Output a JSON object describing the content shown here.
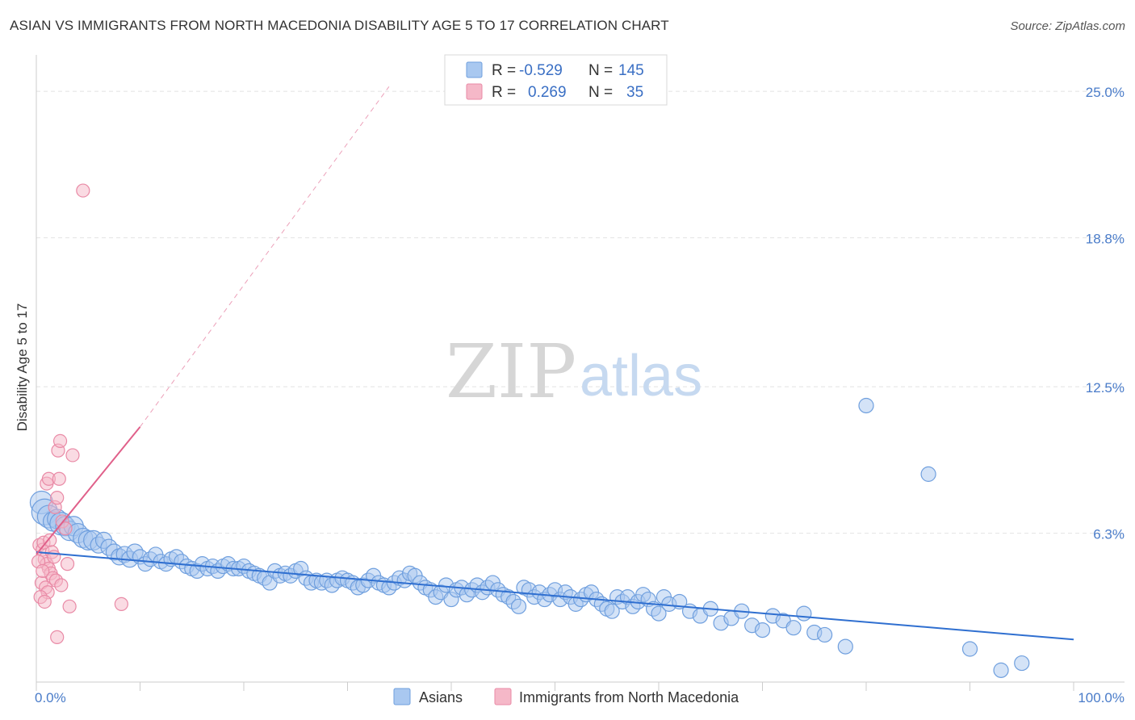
{
  "header": {
    "title": "ASIAN VS IMMIGRANTS FROM NORTH MACEDONIA DISABILITY AGE 5 TO 17 CORRELATION CHART",
    "source": "Source: ZipAtlas.com"
  },
  "watermark": {
    "zip": "ZIP",
    "atlas": "atlas"
  },
  "legend_top": {
    "rows": [
      {
        "r_label": "R =",
        "r_value": "-0.529",
        "n_label": "N =",
        "n_value": "145",
        "color": "#a9c8f0"
      },
      {
        "r_label": "R =",
        "r_value": "0.269",
        "n_label": "N =",
        "n_value": "35",
        "color": "#f5b8c8"
      }
    ]
  },
  "legend_bottom": {
    "items": [
      {
        "label": "Asians",
        "color": "#a9c8f0"
      },
      {
        "label": "Immigrants from North Macedonia",
        "color": "#f5b8c8"
      }
    ]
  },
  "colors": {
    "blue_fill": "#a9c8f0",
    "blue_stroke": "#6f9fde",
    "blue_line": "#2f6fd0",
    "pink_fill": "#f5b8c8",
    "pink_stroke": "#e98aa6",
    "pink_line": "#e0608a",
    "grid": "#e2e2e2",
    "axis_label": "#4a7cc9"
  },
  "chart_data": {
    "type": "scatter",
    "title": "ASIAN VS IMMIGRANTS FROM NORTH MACEDONIA DISABILITY AGE 5 TO 17 CORRELATION CHART",
    "xlabel": "",
    "ylabel": "Disability Age 5 to 17",
    "xlim": [
      0,
      100
    ],
    "ylim": [
      0,
      26.2
    ],
    "x_tick_labels": [
      "0.0%",
      "100.0%"
    ],
    "y_ticks": [
      6.3,
      12.5,
      18.8,
      25.0
    ],
    "y_tick_labels": [
      "6.3%",
      "12.5%",
      "18.8%",
      "25.0%"
    ],
    "grid": true,
    "legend_placement": "top-center",
    "series": [
      {
        "name": "Asians",
        "r": -0.529,
        "n": 145,
        "trend": {
          "x0": 0,
          "y0": 5.5,
          "x1": 100,
          "y1": 1.8
        },
        "points": [
          [
            0.5,
            7.6,
            14
          ],
          [
            0.8,
            7.2,
            16
          ],
          [
            1.2,
            7.0,
            14
          ],
          [
            1.6,
            6.8,
            12
          ],
          [
            2.0,
            6.9,
            12
          ],
          [
            2.4,
            6.7,
            14
          ],
          [
            2.8,
            6.6,
            12
          ],
          [
            3.2,
            6.4,
            12
          ],
          [
            3.6,
            6.6,
            12
          ],
          [
            4.0,
            6.3,
            12
          ],
          [
            4.5,
            6.1,
            12
          ],
          [
            5.0,
            6.0,
            12
          ],
          [
            5.5,
            6.0,
            12
          ],
          [
            6.0,
            5.8,
            10
          ],
          [
            6.5,
            6.0,
            10
          ],
          [
            7.0,
            5.7,
            10
          ],
          [
            7.5,
            5.5,
            10
          ],
          [
            8.0,
            5.3,
            10
          ],
          [
            8.5,
            5.4,
            10
          ],
          [
            9.0,
            5.2,
            10
          ],
          [
            9.5,
            5.5,
            10
          ],
          [
            10.0,
            5.3,
            9
          ],
          [
            10.5,
            5.0,
            9
          ],
          [
            11.0,
            5.2,
            9
          ],
          [
            11.5,
            5.4,
            9
          ],
          [
            12.0,
            5.1,
            9
          ],
          [
            12.5,
            5.0,
            9
          ],
          [
            13.0,
            5.2,
            9
          ],
          [
            13.5,
            5.3,
            9
          ],
          [
            14.0,
            5.1,
            9
          ],
          [
            14.5,
            4.9,
            9
          ],
          [
            15.0,
            4.8,
            9
          ],
          [
            15.5,
            4.7,
            9
          ],
          [
            16.0,
            5.0,
            9
          ],
          [
            16.5,
            4.8,
            9
          ],
          [
            17.0,
            4.9,
            9
          ],
          [
            17.5,
            4.7,
            9
          ],
          [
            18.0,
            4.9,
            9
          ],
          [
            18.5,
            5.0,
            9
          ],
          [
            19.0,
            4.8,
            9
          ],
          [
            19.5,
            4.8,
            9
          ],
          [
            20.0,
            4.9,
            9
          ],
          [
            20.5,
            4.7,
            9
          ],
          [
            21.0,
            4.6,
            9
          ],
          [
            21.5,
            4.5,
            9
          ],
          [
            22.0,
            4.4,
            9
          ],
          [
            22.5,
            4.2,
            9
          ],
          [
            23.0,
            4.7,
            9
          ],
          [
            23.5,
            4.5,
            9
          ],
          [
            24.0,
            4.6,
            9
          ],
          [
            24.5,
            4.5,
            9
          ],
          [
            25.0,
            4.7,
            9
          ],
          [
            25.5,
            4.8,
            9
          ],
          [
            26.0,
            4.4,
            9
          ],
          [
            26.5,
            4.2,
            9
          ],
          [
            27.0,
            4.3,
            9
          ],
          [
            27.5,
            4.2,
            9
          ],
          [
            28.0,
            4.3,
            9
          ],
          [
            28.5,
            4.1,
            9
          ],
          [
            29.0,
            4.3,
            9
          ],
          [
            29.5,
            4.4,
            9
          ],
          [
            30.0,
            4.3,
            9
          ],
          [
            30.5,
            4.2,
            9
          ],
          [
            31.0,
            4.0,
            9
          ],
          [
            31.5,
            4.1,
            9
          ],
          [
            32.0,
            4.3,
            9
          ],
          [
            32.5,
            4.5,
            9
          ],
          [
            33.0,
            4.2,
            9
          ],
          [
            33.5,
            4.1,
            9
          ],
          [
            34.0,
            4.0,
            9
          ],
          [
            34.5,
            4.2,
            9
          ],
          [
            35.0,
            4.4,
            9
          ],
          [
            35.5,
            4.3,
            9
          ],
          [
            36.0,
            4.6,
            9
          ],
          [
            36.5,
            4.5,
            9
          ],
          [
            37.0,
            4.2,
            9
          ],
          [
            37.5,
            4.0,
            9
          ],
          [
            38.0,
            3.9,
            9
          ],
          [
            38.5,
            3.6,
            9
          ],
          [
            39.0,
            3.8,
            9
          ],
          [
            39.5,
            4.1,
            9
          ],
          [
            40.0,
            3.5,
            9
          ],
          [
            40.5,
            3.9,
            9
          ],
          [
            41.0,
            4.0,
            9
          ],
          [
            41.5,
            3.7,
            9
          ],
          [
            42.0,
            3.9,
            9
          ],
          [
            42.5,
            4.1,
            9
          ],
          [
            43.0,
            3.8,
            9
          ],
          [
            43.5,
            4.0,
            9
          ],
          [
            44.0,
            4.2,
            9
          ],
          [
            44.5,
            3.9,
            9
          ],
          [
            45.0,
            3.7,
            9
          ],
          [
            45.5,
            3.6,
            9
          ],
          [
            46.0,
            3.4,
            9
          ],
          [
            46.5,
            3.2,
            9
          ],
          [
            47.0,
            4.0,
            9
          ],
          [
            47.5,
            3.9,
            9
          ],
          [
            48.0,
            3.6,
            9
          ],
          [
            48.5,
            3.8,
            9
          ],
          [
            49.0,
            3.5,
            9
          ],
          [
            49.5,
            3.7,
            9
          ],
          [
            50.0,
            3.9,
            9
          ],
          [
            50.5,
            3.5,
            9
          ],
          [
            51.0,
            3.8,
            9
          ],
          [
            51.5,
            3.6,
            9
          ],
          [
            52.0,
            3.3,
            9
          ],
          [
            52.5,
            3.5,
            9
          ],
          [
            53.0,
            3.7,
            9
          ],
          [
            53.5,
            3.8,
            9
          ],
          [
            54.0,
            3.5,
            9
          ],
          [
            54.5,
            3.3,
            9
          ],
          [
            55.0,
            3.1,
            9
          ],
          [
            55.5,
            3.0,
            9
          ],
          [
            56.0,
            3.6,
            9
          ],
          [
            56.5,
            3.4,
            9
          ],
          [
            57.0,
            3.6,
            9
          ],
          [
            57.5,
            3.2,
            9
          ],
          [
            58.0,
            3.4,
            9
          ],
          [
            58.5,
            3.7,
            9
          ],
          [
            59.0,
            3.5,
            9
          ],
          [
            59.5,
            3.1,
            9
          ],
          [
            60.0,
            2.9,
            9
          ],
          [
            60.5,
            3.6,
            9
          ],
          [
            61.0,
            3.3,
            9
          ],
          [
            62.0,
            3.4,
            9
          ],
          [
            63.0,
            3.0,
            9
          ],
          [
            64.0,
            2.8,
            9
          ],
          [
            65.0,
            3.1,
            9
          ],
          [
            66.0,
            2.5,
            9
          ],
          [
            67.0,
            2.7,
            9
          ],
          [
            68.0,
            3.0,
            9
          ],
          [
            69.0,
            2.4,
            9
          ],
          [
            70.0,
            2.2,
            9
          ],
          [
            71.0,
            2.8,
            9
          ],
          [
            72.0,
            2.6,
            9
          ],
          [
            73.0,
            2.3,
            9
          ],
          [
            74.0,
            2.9,
            9
          ],
          [
            75.0,
            2.1,
            9
          ],
          [
            76.0,
            2.0,
            9
          ],
          [
            78.0,
            1.5,
            9
          ],
          [
            80.0,
            11.7,
            9
          ],
          [
            86.0,
            8.8,
            9
          ],
          [
            90.0,
            1.4,
            9
          ],
          [
            93.0,
            0.5,
            9
          ],
          [
            95.0,
            0.8,
            9
          ]
        ]
      },
      {
        "name": "Immigrants from North Macedonia",
        "r": 0.269,
        "n": 35,
        "trend": {
          "x0": 0,
          "y0": 5.4,
          "x1": 10,
          "y1": 10.8,
          "dash_x1": 34,
          "dash_y1": 25.2
        },
        "points": [
          [
            4.5,
            20.8,
            8
          ],
          [
            0.3,
            5.8,
            8
          ],
          [
            0.6,
            5.6,
            8
          ],
          [
            0.8,
            5.2,
            8
          ],
          [
            1.0,
            5.0,
            8
          ],
          [
            1.2,
            4.8,
            8
          ],
          [
            1.4,
            4.6,
            8
          ],
          [
            1.6,
            4.4,
            8
          ],
          [
            0.5,
            4.2,
            8
          ],
          [
            0.9,
            4.0,
            8
          ],
          [
            1.1,
            3.8,
            8
          ],
          [
            0.4,
            3.6,
            8
          ],
          [
            0.7,
            5.9,
            8
          ],
          [
            1.3,
            6.0,
            8
          ],
          [
            1.5,
            5.5,
            8
          ],
          [
            1.8,
            7.4,
            8
          ],
          [
            2.0,
            7.8,
            8
          ],
          [
            1.0,
            8.4,
            8
          ],
          [
            1.2,
            8.6,
            8
          ],
          [
            2.2,
            8.6,
            8
          ],
          [
            2.1,
            9.8,
            8
          ],
          [
            2.3,
            10.2,
            8
          ],
          [
            3.5,
            9.6,
            8
          ],
          [
            2.5,
            6.8,
            8
          ],
          [
            2.8,
            6.5,
            8
          ],
          [
            3.0,
            5.0,
            8
          ],
          [
            3.2,
            3.2,
            8
          ],
          [
            2.0,
            1.9,
            8
          ],
          [
            8.2,
            3.3,
            8
          ],
          [
            1.9,
            4.3,
            8
          ],
          [
            0.2,
            5.1,
            8
          ],
          [
            0.6,
            4.7,
            8
          ],
          [
            1.7,
            5.3,
            8
          ],
          [
            2.4,
            4.1,
            8
          ],
          [
            0.8,
            3.4,
            8
          ]
        ]
      }
    ]
  }
}
